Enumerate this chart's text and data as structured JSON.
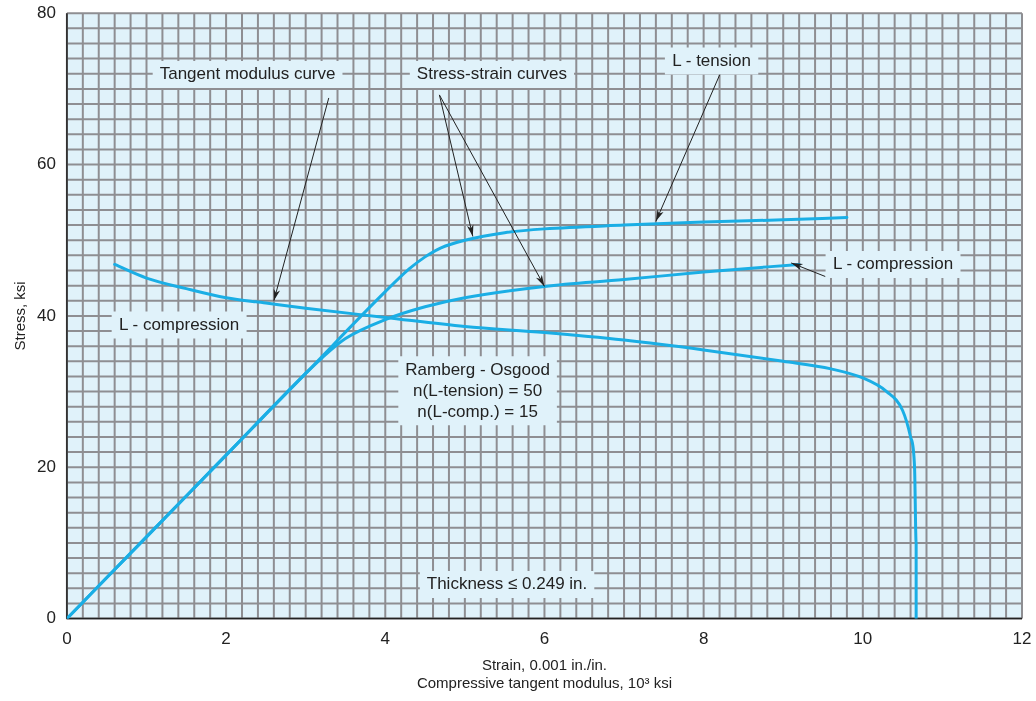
{
  "chart_data": {
    "type": "line",
    "xlabel": "Strain, 0.001 in./in.\nCompressive tangent modulus, 10³ ksi",
    "ylabel": "Stress, ksi",
    "xlim": [
      0,
      12
    ],
    "xticks": [
      0,
      2,
      4,
      6,
      8,
      10,
      12
    ],
    "ylim": [
      0,
      80
    ],
    "yticks": [
      0,
      20,
      40,
      60,
      80
    ],
    "grid": true,
    "legend": false,
    "marker": "none",
    "line_style": "solid",
    "series": [
      {
        "color": "#1aaee5",
        "x": [
          0,
          1,
          2,
          3,
          4,
          4.3,
          4.5,
          4.7,
          5,
          5.5,
          6,
          7,
          8,
          9,
          9.8
        ],
        "values": [
          0,
          10.8,
          21.6,
          32.4,
          43.2,
          46.2,
          47.8,
          49,
          50,
          51,
          51.5,
          52,
          52.4,
          52.7,
          53
        ]
      },
      {
        "color": "#1aaee5",
        "x": [
          0,
          1,
          2,
          3,
          3.2,
          3.5,
          4,
          4.5,
          5,
          6,
          7,
          8,
          9.2
        ],
        "values": [
          0,
          10.8,
          21.6,
          32.4,
          34.4,
          37,
          39.5,
          41.2,
          42.4,
          43.9,
          44.8,
          45.8,
          46.8
        ]
      },
      {
        "color": "#1aaee5",
        "x": [
          0.6,
          1,
          1.5,
          2,
          2.5,
          3,
          4,
          5,
          6,
          7,
          8,
          9,
          9.6,
          10,
          10.3,
          10.5,
          10.6,
          10.65,
          10.67,
          10.67
        ],
        "values": [
          46.8,
          45,
          43.6,
          42.4,
          41.7,
          41,
          39.8,
          38.6,
          37.8,
          36.8,
          35.5,
          34,
          33,
          31.8,
          30,
          27.5,
          24,
          20,
          10,
          0
        ]
      }
    ],
    "annotations": [
      {
        "text": "Tangent modulus curve",
        "x": 2.6,
        "y": 42
      },
      {
        "text": "Stress-strain curves",
        "x": 5.1,
        "y": 50.5
      },
      {
        "text": "L - tension",
        "x": 7.4,
        "y": 52.5
      },
      {
        "text": "L - compression",
        "x": 9.1,
        "y": 47
      },
      "L - compression",
      "Ramberg - Osgood\nn(L-tension) = 50\nn(L-comp.) = 15",
      "Thickness ≤ 0.249 in."
    ]
  }
}
